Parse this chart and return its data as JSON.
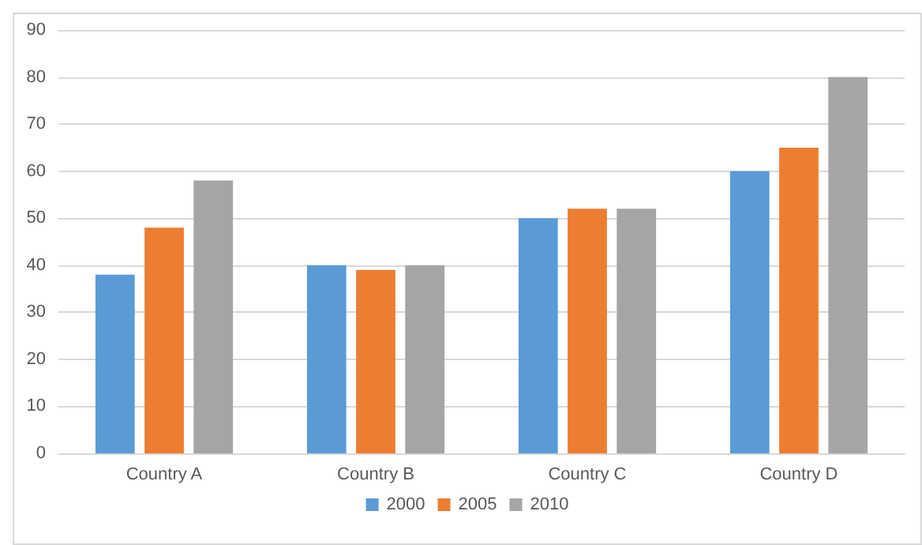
{
  "chart_data": {
    "type": "bar",
    "categories": [
      "Country A",
      "Country B",
      "Country C",
      "Country D"
    ],
    "series": [
      {
        "name": "2000",
        "color": "#5b9bd5",
        "values": [
          38,
          40,
          50,
          60
        ]
      },
      {
        "name": "2005",
        "color": "#ed7d31",
        "values": [
          48,
          39,
          52,
          65
        ]
      },
      {
        "name": "2010",
        "color": "#a5a5a5",
        "values": [
          58,
          40,
          52,
          80
        ]
      }
    ],
    "ylim": [
      0,
      90
    ],
    "yticks": [
      0,
      10,
      20,
      30,
      40,
      50,
      60,
      70,
      80,
      90
    ],
    "grid": "y",
    "legend": "bottom"
  }
}
